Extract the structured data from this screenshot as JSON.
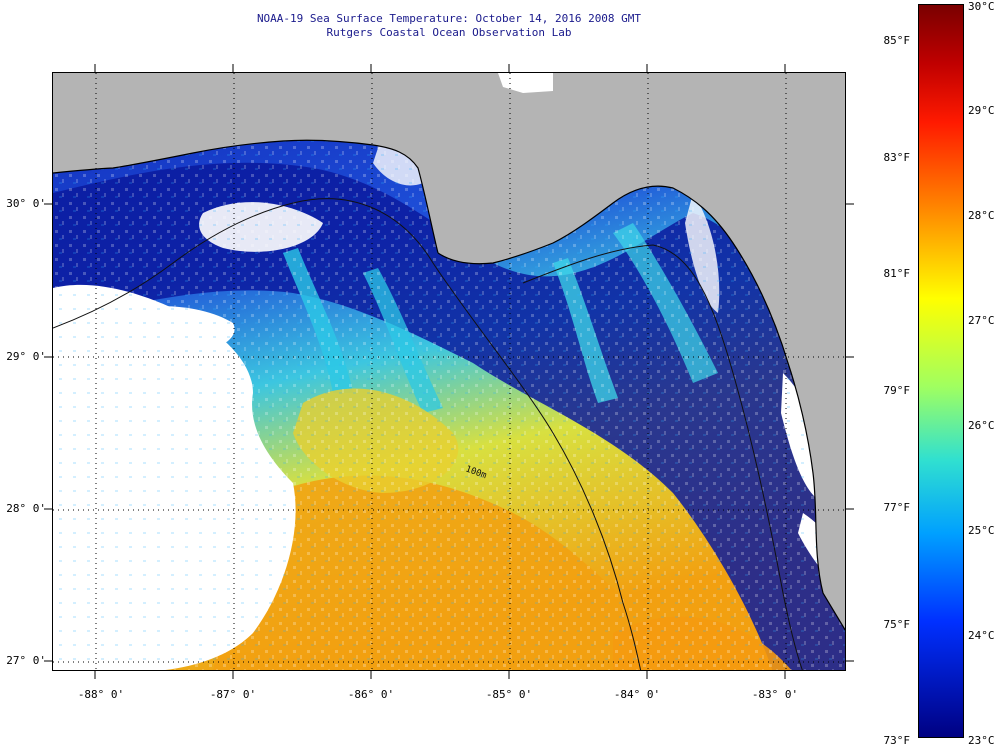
{
  "title_line1": "NOAA-19 Sea Surface Temperature:  October 14, 2016 2008 GMT",
  "title_line2": "Rutgers Coastal Ocean Observation Lab",
  "map": {
    "lat_range": [
      26.95,
      30.8
    ],
    "lon_range": [
      -88.3,
      -82.55
    ],
    "lat_labels": [
      "30° 0'",
      "29° 0'",
      "28° 0'",
      "27° 0'"
    ],
    "lon_labels": [
      "-88° 0'",
      "-87° 0'",
      "-86° 0'",
      "-85° 0'",
      "-84° 0'",
      "-83° 0'"
    ],
    "contour_label": "100m",
    "colors": {
      "land": "#b4b4b4",
      "cloud": "#ffffff",
      "cold_water": "#0a1a9e",
      "warm_water": "#f2a010",
      "frame": "#000000"
    }
  },
  "colorbar": {
    "fahrenheit_labels": [
      "85°F",
      "83°F",
      "81°F",
      "79°F",
      "77°F",
      "75°F",
      "73°F"
    ],
    "celsius_labels": [
      "30°C",
      "29°C",
      "28°C",
      "27°C",
      "26°C",
      "25°C",
      "24°C",
      "23°C"
    ],
    "range_c": [
      23,
      30
    ]
  }
}
